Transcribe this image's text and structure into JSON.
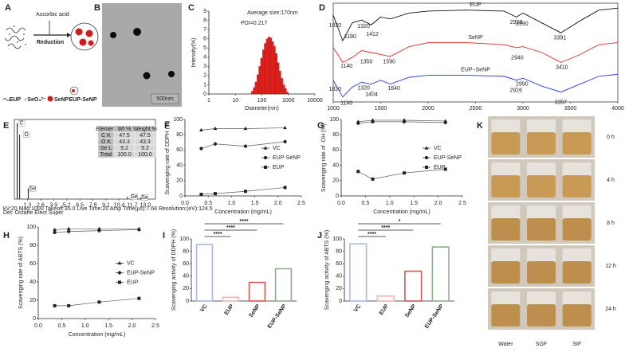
{
  "panel_labels": [
    "A",
    "B",
    "C",
    "D",
    "E",
    "F",
    "G",
    "K",
    "H",
    "I",
    "J"
  ],
  "schematic": {
    "reagent": "Ascorbic acid",
    "step": "Reduction",
    "legend": [
      "EUP",
      "SeO₃²⁻",
      "SeNP",
      "EUP-SeNP"
    ]
  },
  "micrograph": {
    "scale_bar": "500nm"
  },
  "stability": {
    "times": [
      "0 h",
      "4 h",
      "8 h",
      "12 h",
      "24 h"
    ],
    "media": [
      "Water",
      "SGF",
      "SIF"
    ]
  },
  "chart_data": [
    {
      "type": "histogram",
      "annotations": [
        "Average size:170nm",
        "PDI=0.217"
      ],
      "x_label": "Diameter(nm)",
      "y_label": "Intensity(%)",
      "bins": [
        40,
        47,
        55,
        65,
        76,
        89,
        105,
        123,
        145,
        170,
        200,
        235,
        276,
        324,
        381,
        447,
        525,
        617,
        725,
        851,
        1000
      ],
      "values": [
        0.3,
        0.7,
        1.3,
        2.1,
        3.0,
        3.9,
        4.8,
        5.5,
        6.0,
        6.2,
        6.1,
        5.7,
        5.2,
        4.4,
        3.4,
        2.5,
        1.7,
        1.0,
        0.6,
        0.2
      ],
      "color": "#e0201c",
      "log_x": true,
      "xlim": [
        1,
        10000
      ],
      "xticks": [
        1,
        10,
        100,
        1000,
        10000
      ],
      "ylim": [
        0,
        9
      ],
      "yticks": [
        0,
        1,
        2,
        3,
        4,
        5,
        6,
        7,
        8,
        9
      ]
    },
    {
      "type": "line",
      "frame": true,
      "x": [
        1000,
        1100,
        1200,
        1300,
        1400,
        1500,
        1600,
        1800,
        2000,
        2400,
        2800,
        2930,
        3000,
        3200,
        3400,
        3600,
        3800,
        4000
      ],
      "series": [
        {
          "name": "EUP",
          "color": "#111111",
          "values": [
            88,
            62,
            80,
            83,
            78,
            86,
            84,
            90,
            92,
            93,
            92,
            86,
            90,
            80,
            70,
            82,
            93,
            95
          ],
          "peaks": [
            1020,
            1180,
            1320,
            1412,
            2928,
            2990,
            3391
          ]
        },
        {
          "name": "SeNP",
          "color": "#e02a2a",
          "values": [
            55,
            40,
            45,
            52,
            50,
            48,
            46,
            56,
            60,
            60,
            58,
            55,
            56,
            50,
            40,
            48,
            58,
            60
          ],
          "peaks": [
            1140,
            1350,
            1590,
            2940,
            3410
          ]
        },
        {
          "name": "EUP−SeNP",
          "color": "#2a3ad8",
          "values": [
            22,
            5,
            15,
            20,
            18,
            22,
            18,
            25,
            27,
            27,
            26,
            22,
            24,
            16,
            10,
            18,
            26,
            28
          ],
          "peaks": [
            1020,
            1140,
            1320,
            1404,
            1640,
            2926,
            2990,
            3397
          ]
        }
      ],
      "xlim": [
        1000,
        4000
      ],
      "xticks": [
        1000,
        1500,
        2000,
        2500,
        3000,
        3500,
        4000
      ],
      "ylim": [
        0,
        100
      ]
    },
    {
      "type": "stem",
      "frame": true,
      "x": [
        0.28,
        0.52,
        1.38,
        11.22,
        12.5
      ],
      "values": [
        100,
        85,
        14,
        3,
        2
      ],
      "labels": [
        "C",
        "O",
        "Se",
        "Se",
        "Se"
      ],
      "color": "#333333",
      "xlim": [
        0,
        14
      ],
      "xticks": [
        1.3,
        2.6,
        3.9,
        5.2,
        6.5,
        7.8,
        9.1,
        10.4,
        11.7,
        {
          "value": 13,
          "label": "13.0"
        }
      ],
      "ylim": [
        0,
        105
      ],
      "table": {
        "header": [
          "Element",
          "Wt %",
          "Weight %"
        ],
        "rows": [
          [
            "C K",
            "47.5",
            "47.5"
          ],
          [
            "O K",
            "43.3",
            "43.3"
          ],
          [
            "Se L",
            "9.2",
            "9.2"
          ],
          [
            "Total",
            "100.0",
            "100.0"
          ]
        ]
      },
      "footer": [
        "kV:20  Mag:1000  Takeoff:35.0  Live Time:20  Amp Time(μs):7.68  Resolution:(eV):124.5",
        "Det: Octane Elect Super"
      ]
    },
    {
      "type": "line",
      "x": [
        0.35,
        0.65,
        1.3,
        2.15
      ],
      "x_label": "Concentration (mg/mL)",
      "y_label": "Scavenging rate of DDPH (%)",
      "series": [
        {
          "name": "VC",
          "color": "#222222",
          "marker": "triangle",
          "values": [
            86,
            88,
            88,
            89
          ]
        },
        {
          "name": "EUP-SeNP",
          "color": "#222222",
          "marker": "circle",
          "values": [
            62,
            68,
            65,
            71
          ]
        },
        {
          "name": "EUP",
          "color": "#222222",
          "marker": "square",
          "values": [
            2,
            3,
            6,
            11
          ]
        }
      ],
      "xlim": [
        0,
        2.5
      ],
      "xticks": [
        {
          "value": 0,
          "label": "0.0"
        },
        0.5,
        {
          "value": 1,
          "label": "1.0"
        },
        1.5,
        {
          "value": 2,
          "label": "2.0"
        },
        2.5
      ],
      "ylim": [
        0,
        100
      ],
      "yticks": [
        0,
        20,
        40,
        60,
        80,
        100
      ],
      "legend": "right"
    },
    {
      "type": "line",
      "x": [
        0.35,
        0.65,
        1.3,
        2.15
      ],
      "x_label": "Concentration (mg/mL)",
      "y_label": "Scavenging rate of ·OH (%)",
      "series": [
        {
          "name": "VC",
          "color": "#222222",
          "marker": "triangle",
          "values": [
            97,
            99,
            99,
            98
          ]
        },
        {
          "name": "EUP-SeNP",
          "color": "#222222",
          "marker": "circle",
          "values": [
            95,
            97,
            97,
            96
          ]
        },
        {
          "name": "EUP",
          "color": "#222222",
          "marker": "square",
          "values": [
            32,
            22,
            30,
            35
          ]
        }
      ],
      "xlim": [
        0,
        2.5
      ],
      "xticks": [
        {
          "value": 0,
          "label": "0.0"
        },
        0.5,
        {
          "value": 1,
          "label": "1.0"
        },
        1.5,
        {
          "value": 2,
          "label": "2.0"
        },
        2.5
      ],
      "ylim": [
        0,
        100
      ],
      "yticks": [
        0,
        20,
        40,
        60,
        80,
        100
      ],
      "legend": "right"
    },
    {
      "type": "line",
      "x": [
        0.35,
        0.65,
        1.3,
        2.15
      ],
      "x_label": "Concentration (mg/mL)",
      "y_label": "Scavenging rate of ABTS (%)",
      "series": [
        {
          "name": "VC",
          "color": "#222222",
          "marker": "triangle",
          "values": [
            97,
            98,
            98,
            98
          ]
        },
        {
          "name": "EUP-SeNP",
          "color": "#222222",
          "marker": "circle",
          "values": [
            94,
            95,
            96,
            97
          ]
        },
        {
          "name": "EUP",
          "color": "#222222",
          "marker": "square",
          "values": [
            14,
            14,
            18,
            22
          ]
        }
      ],
      "xlim": [
        0,
        2.5
      ],
      "xticks": [
        {
          "value": 0,
          "label": "0.0"
        },
        0.5,
        {
          "value": 1,
          "label": "1.0"
        },
        1.5,
        {
          "value": 2,
          "label": "2.0"
        },
        2.5
      ],
      "ylim": [
        0,
        100
      ],
      "yticks": [
        0,
        20,
        40,
        60,
        80,
        100
      ],
      "legend": "right"
    },
    {
      "type": "bar",
      "categories": [
        "VC",
        "EUP",
        "SeNP",
        "EUP-SeNP"
      ],
      "values": [
        91,
        6,
        30,
        52
      ],
      "colors": [
        "#a9b9e2",
        "#f0b4b4",
        "#d9534f",
        "#8fae8f"
      ],
      "y_label": "Scavenging activity of DDPH (%)",
      "ylim": [
        0,
        100
      ],
      "yticks": [
        0,
        20,
        40,
        60,
        80,
        100
      ],
      "significance": [
        {
          "pair": [
            "VC",
            "EUP"
          ],
          "label": "****"
        },
        {
          "pair": [
            "VC",
            "SeNP"
          ],
          "label": "****"
        },
        {
          "pair": [
            "VC",
            "EUP-SeNP"
          ],
          "label": "****"
        }
      ]
    },
    {
      "type": "bar",
      "categories": [
        "VC",
        "EUP",
        "SeNP",
        "EUP-SeNP"
      ],
      "values": [
        92,
        8,
        48,
        87
      ],
      "colors": [
        "#a9b9e2",
        "#f0b4b4",
        "#d9534f",
        "#8fae8f"
      ],
      "y_label": "Scavenging activity of ABTS (%)",
      "ylim": [
        0,
        100
      ],
      "yticks": [
        0,
        20,
        40,
        60,
        80,
        100
      ],
      "significance": [
        {
          "pair": [
            "VC",
            "EUP"
          ],
          "label": "****"
        },
        {
          "pair": [
            "VC",
            "SeNP"
          ],
          "label": "****"
        },
        {
          "pair": [
            "VC",
            "EUP-SeNP"
          ],
          "label": "*"
        }
      ]
    }
  ]
}
